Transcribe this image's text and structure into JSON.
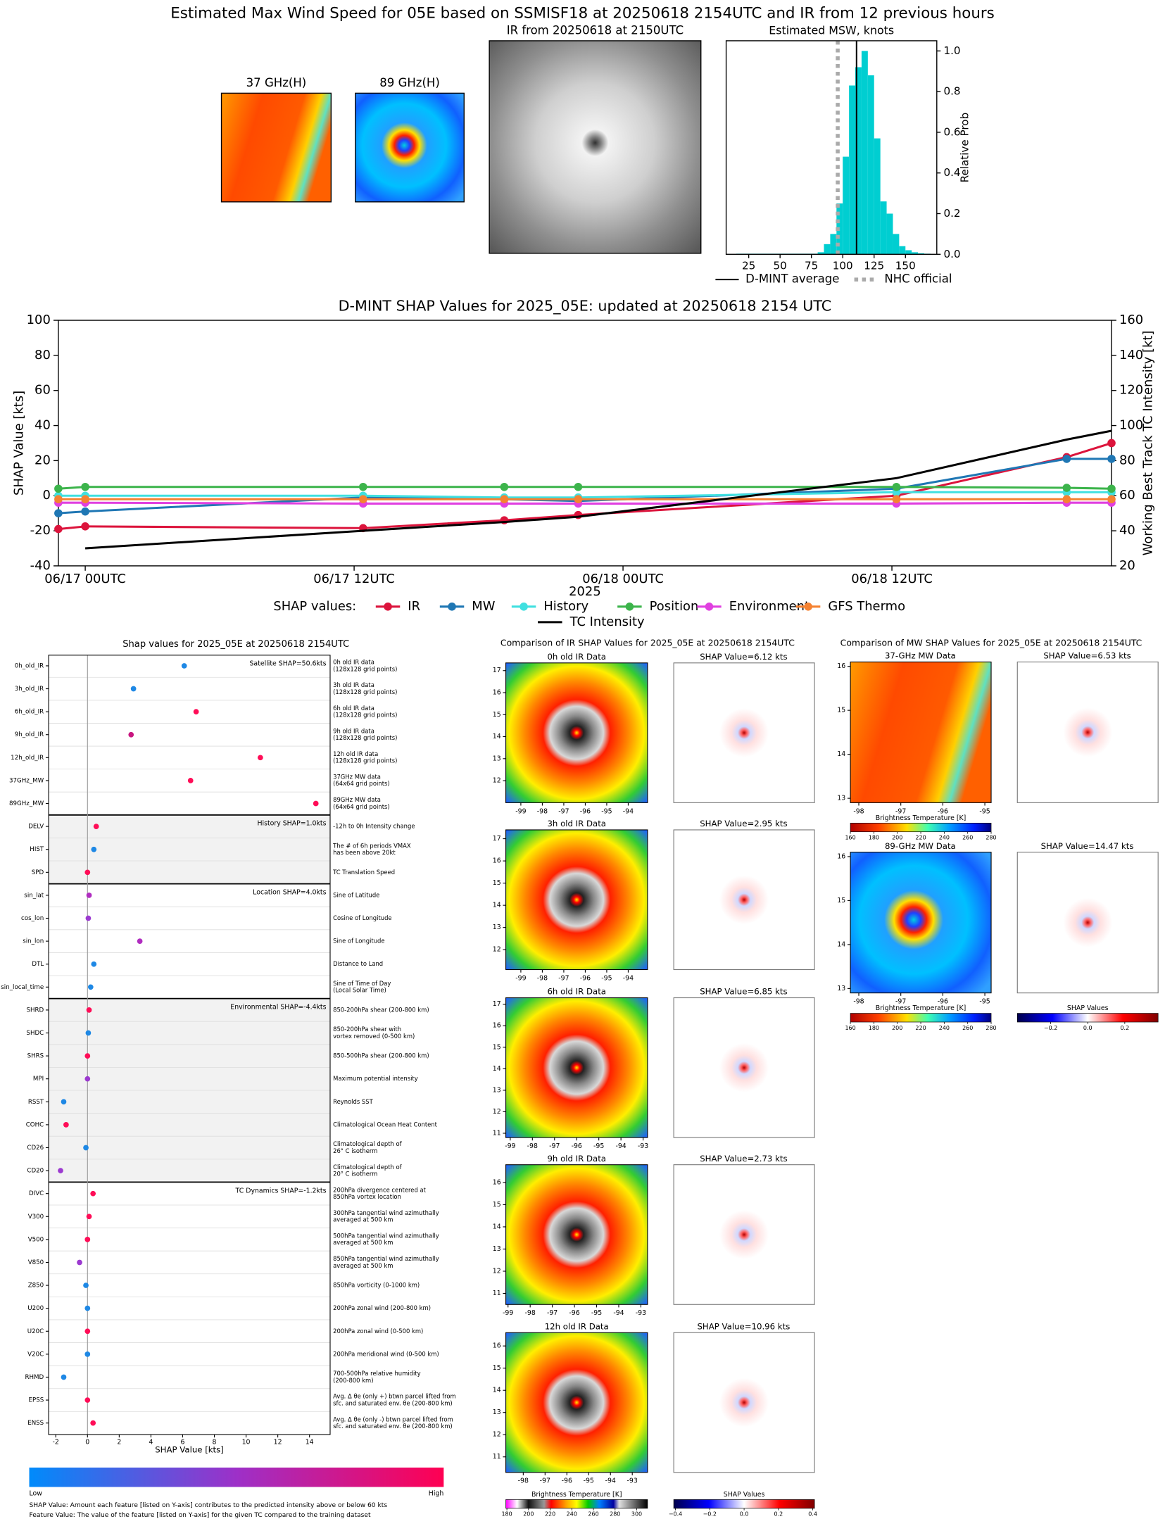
{
  "title": "Estimated Max Wind Speed for 05E based on SSMISF18 at 20250618 2154UTC and IR from 12 previous hours",
  "satellite": {
    "panels": [
      "37 GHz(H)",
      "89 GHz(H)",
      "IR from 20250618 at 2150UTC"
    ]
  },
  "chart_data": [
    {
      "type": "histogram",
      "title": "Estimated MSW, knots",
      "ylabel": "Relative Prob",
      "color": "#00ced1",
      "bins": [
        15,
        20,
        25,
        30,
        35,
        40,
        45,
        50,
        55,
        60,
        65,
        70,
        75,
        80,
        85,
        90,
        95,
        100,
        105,
        110,
        115,
        120,
        125,
        130,
        135,
        140,
        145,
        150,
        155,
        160,
        165,
        170
      ],
      "values": [
        0.003,
        0.003,
        0.003,
        0.003,
        0.003,
        0.003,
        0.003,
        0.003,
        0.003,
        0.003,
        0.003,
        0.003,
        0.003,
        0.01,
        0.05,
        0.1,
        0.25,
        0.48,
        0.83,
        0.92,
        1.0,
        0.88,
        0.57,
        0.26,
        0.2,
        0.1,
        0.04,
        0.02,
        0.01,
        0.005,
        0.003
      ],
      "xlim": [
        7,
        175
      ],
      "xticks": [
        25,
        50,
        75,
        100,
        125,
        150
      ],
      "ylim": [
        0,
        1.05
      ],
      "yticks": [
        {
          "value": 0,
          "label": "0.0"
        },
        0.2,
        0.4,
        0.6,
        0.8,
        {
          "value": 1,
          "label": "1.0"
        }
      ],
      "lines": [
        {
          "name": "D-MINT average",
          "value": 111,
          "color": "#000000",
          "style": "solid"
        },
        {
          "name": "NHC official",
          "value": 96,
          "color": "#aaaaaa",
          "style": "dotted"
        }
      ]
    },
    {
      "type": "line",
      "title": "D-MINT SHAP Values for 2025_05E: updated at 20250618 2154 UTC",
      "xlabel": "2025",
      "ylabel": "SHAP Value [kts]",
      "y2label": "Working Best Track TC Intensity [kt]",
      "legend_title": "SHAP values:",
      "x": [
        -1.2,
        0,
        12.4,
        18.7,
        22,
        36.2,
        43.8,
        45.8
      ],
      "xlim": [
        -1.2,
        45.8
      ],
      "xticks": [
        {
          "value": 0,
          "label": "06/17 00UTC"
        },
        {
          "value": 12,
          "label": "06/17 12UTC"
        },
        {
          "value": 24,
          "label": "06/18 00UTC"
        },
        {
          "value": 36,
          "label": "06/18 12UTC"
        }
      ],
      "ylim": [
        -40,
        100
      ],
      "yticks": [
        -40,
        -20,
        0,
        20,
        40,
        60,
        80,
        100
      ],
      "y2lim": [
        20,
        160
      ],
      "y2ticks": [
        20,
        40,
        60,
        80,
        100,
        120,
        140,
        160
      ],
      "series": [
        {
          "name": "IR",
          "color": "#dc143c",
          "marker": "o",
          "values": [
            -19,
            -17.5,
            -18.5,
            -14,
            -11,
            0,
            22,
            30
          ]
        },
        {
          "name": "MW",
          "color": "#1f77b4",
          "marker": "o",
          "values": [
            -10,
            -9,
            -1,
            -2,
            -3,
            4,
            21,
            21
          ]
        },
        {
          "name": "History",
          "color": "#40e0e0",
          "marker": "o",
          "values": [
            0,
            0,
            0,
            -1,
            -1,
            2,
            2,
            2
          ]
        },
        {
          "name": "Position",
          "color": "#3cb44b",
          "marker": "o",
          "values": [
            4,
            5,
            5,
            5,
            5,
            5,
            4.5,
            4
          ]
        },
        {
          "name": "Environment",
          "color": "#e040e0",
          "marker": "o",
          "values": [
            -4,
            -4,
            -4.5,
            -4.5,
            -4.5,
            -4.5,
            -4,
            -4
          ]
        },
        {
          "name": "GFS Thermo",
          "color": "#f58231",
          "marker": "o",
          "values": [
            -2,
            -2,
            -2,
            -2,
            -2,
            -2,
            -2,
            -2
          ]
        },
        {
          "name": "TC Intensity",
          "color": "#000000",
          "axis": "y2",
          "values": [
            null,
            30,
            40,
            45,
            48,
            70,
            92,
            97
          ]
        }
      ]
    },
    {
      "type": "dot",
      "title": "Shap values for 2025_05E at 20250618 2154UTC",
      "xlabel": "SHAP Value [kts]",
      "xlim": [
        -2.45,
        15.3
      ],
      "xticks": [
        -2,
        0,
        2,
        4,
        6,
        8,
        10,
        12,
        14
      ],
      "colorbar_low": "Low",
      "colorbar_high": "High",
      "notes": [
        "SHAP Value: Amount each feature [listed on Y-axis] contributes to the predicted intensity above or below 60 kts",
        "Feature Value: The value of the feature [listed on Y-axis] for the given TC compared to the training dataset"
      ],
      "groups": [
        {
          "label": "Satellite SHAP=50.6kts",
          "features": [
            {
              "name": "0h_old_IR",
              "value": 6.1,
              "color": "#1e88e5",
              "description": [
                "0h old IR data",
                "(128x128 grid points)"
              ]
            },
            {
              "name": "3h_old_IR",
              "value": 2.9,
              "color": "#1e88e5",
              "description": [
                "3h old IR data",
                "(128x128 grid points)"
              ]
            },
            {
              "name": "6h_old_IR",
              "value": 6.85,
              "color": "#ff0d57",
              "description": [
                "6h old IR data",
                "(128x128 grid points)"
              ]
            },
            {
              "name": "9h_old_IR",
              "value": 2.75,
              "color": "#c8167f",
              "description": [
                "9h old IR data",
                "(128x128 grid points)"
              ]
            },
            {
              "name": "12h_old_IR",
              "value": 10.9,
              "color": "#ff0d57",
              "description": [
                "12h old IR data",
                "(128x128 grid points)"
              ]
            },
            {
              "name": "37GHz_MW",
              "value": 6.5,
              "color": "#ff0d57",
              "description": [
                "37GHz MW data",
                "(64x64 grid points)"
              ]
            },
            {
              "name": "89GHz_MW",
              "value": 14.4,
              "color": "#ff0d57",
              "description": [
                "89GHz MW data",
                "(64x64 grid points)"
              ]
            }
          ]
        },
        {
          "label": "History SHAP=1.0kts",
          "shaded": true,
          "features": [
            {
              "name": "DELV",
              "value": 0.55,
              "color": "#ff0d57",
              "description": [
                "-12h to 0h Intensity change"
              ]
            },
            {
              "name": "HIST",
              "value": 0.4,
              "color": "#1e88e5",
              "description": [
                "The # of 6h periods VMAX",
                "has been above 20kt"
              ]
            },
            {
              "name": "SPD",
              "value": 0,
              "color": "#ff0d57",
              "description": [
                "TC Translation Speed"
              ]
            }
          ]
        },
        {
          "label": "Location SHAP=4.0kts",
          "features": [
            {
              "name": "sin_lat",
              "value": 0.1,
              "color": "#b02cc0",
              "description": [
                "Sine of Latitude"
              ]
            },
            {
              "name": "cos_lon",
              "value": 0.05,
              "color": "#9c3ad0",
              "description": [
                "Cosine of Longitude"
              ]
            },
            {
              "name": "sin_lon",
              "value": 3.3,
              "color": "#b02cc0",
              "description": [
                "Sine of Longitude"
              ]
            },
            {
              "name": "DTL",
              "value": 0.4,
              "color": "#1e88e5",
              "description": [
                "Distance to Land"
              ]
            },
            {
              "name": "sin_local_time",
              "value": 0.2,
              "color": "#1e88e5",
              "description": [
                "Sine of Time of Day",
                "(Local Solar Time)"
              ]
            }
          ]
        },
        {
          "label": "Environmental SHAP=-4.4kts",
          "shaded": true,
          "features": [
            {
              "name": "SHRD",
              "value": 0.1,
              "color": "#ff0d57",
              "description": [
                "850-200hPa shear (200-800 km)"
              ]
            },
            {
              "name": "SHDC",
              "value": 0.05,
              "color": "#1e88e5",
              "description": [
                "850-200hPa shear with",
                "vortex removed (0-500 km)"
              ]
            },
            {
              "name": "SHRS",
              "value": 0,
              "color": "#ff0d57",
              "description": [
                "850-500hPa shear (200-800 km)"
              ]
            },
            {
              "name": "MPI",
              "value": 0,
              "color": "#9c3ad0",
              "description": [
                "Maximum potential intensity"
              ]
            },
            {
              "name": "RSST",
              "value": -1.5,
              "color": "#1e88e5",
              "description": [
                "Reynolds SST"
              ]
            },
            {
              "name": "COHC",
              "value": -1.35,
              "color": "#ff0d57",
              "description": [
                "Climatological Ocean Heat Content"
              ]
            },
            {
              "name": "CD26",
              "value": -0.1,
              "color": "#1e88e5",
              "description": [
                "Climatological depth of",
                "26° C isotherm"
              ]
            },
            {
              "name": "CD20",
              "value": -1.7,
              "color": "#9c3ad0",
              "description": [
                "Climatological depth of",
                "20° C isotherm"
              ]
            }
          ]
        },
        {
          "label": "TC Dynamics SHAP=-1.2kts",
          "features": [
            {
              "name": "DIVC",
              "value": 0.35,
              "color": "#ff0d57",
              "description": [
                "200hPa divergence centered at",
                "850hPa vortex location"
              ]
            },
            {
              "name": "V300",
              "value": 0.1,
              "color": "#ff0d57",
              "description": [
                "300hPa tangential wind azimuthally",
                "averaged at 500 km"
              ]
            },
            {
              "name": "V500",
              "value": 0,
              "color": "#ff0d57",
              "description": [
                "500hPa tangential wind azimuthally",
                "averaged at 500 km"
              ]
            },
            {
              "name": "V850",
              "value": -0.5,
              "color": "#9c3ad0",
              "description": [
                "850hPa tangential wind azimuthally",
                "averaged at 500 km"
              ]
            },
            {
              "name": "Z850",
              "value": -0.1,
              "color": "#1e88e5",
              "description": [
                "850hPa vorticity (0-1000 km)"
              ]
            },
            {
              "name": "U200",
              "value": 0,
              "color": "#1e88e5",
              "description": [
                "200hPa zonal wind (200-800 km)"
              ]
            },
            {
              "name": "U20C",
              "value": 0,
              "color": "#ff0d57",
              "description": [
                "200hPa zonal wind (0-500 km)"
              ]
            },
            {
              "name": "V20C",
              "value": 0,
              "color": "#1e88e5",
              "description": [
                "200hPa meridional wind (0-500 km)"
              ]
            },
            {
              "name": "RHMD",
              "value": -1.5,
              "color": "#1e88e5",
              "description": [
                "700-500hPa relative humidity",
                "(200-800 km)"
              ]
            },
            {
              "name": "EPSS",
              "value": 0,
              "color": "#ff0d57",
              "description": [
                "Avg. Δ θe (only +) btwn parcel lifted from",
                "sfc. and saturated env. θe (200-800 km)"
              ]
            },
            {
              "name": "ENSS",
              "value": 0.35,
              "color": "#ff0d57",
              "description": [
                "Avg. Δ θe (only -) btwn parcel lifted from",
                "sfc. and saturated env. θe (200-800 km)"
              ]
            }
          ]
        }
      ]
    }
  ],
  "ir_comparison": {
    "title": "Comparison of IR SHAP Values for 2025_05E at 20250618 2154UTC",
    "rows": [
      {
        "data_title": "0h old IR Data",
        "shap_title": "SHAP Value=6.12 kts",
        "xlim": [
          -99.7,
          -93.1
        ],
        "ylim": [
          11.0,
          17.35
        ],
        "xticks": [
          -99,
          -98,
          -97,
          -96,
          -95,
          -94
        ],
        "yticks": [
          12,
          13,
          14,
          15,
          16,
          17
        ]
      },
      {
        "data_title": "3h old IR Data",
        "shap_title": "SHAP Value=2.95 kts",
        "xlim": [
          -99.7,
          -93.1
        ],
        "ylim": [
          11.1,
          17.4
        ],
        "xticks": [
          -99,
          -98,
          -97,
          -96,
          -95,
          -94
        ],
        "yticks": [
          12,
          13,
          14,
          15,
          16,
          17
        ]
      },
      {
        "data_title": "6h old IR Data",
        "shap_title": "SHAP Value=6.85 kts",
        "xlim": [
          -99.2,
          -92.8
        ],
        "ylim": [
          10.8,
          17.3
        ],
        "xticks": [
          -99,
          -98,
          -97,
          -96,
          -95,
          -94,
          -93
        ],
        "yticks": [
          11,
          12,
          13,
          14,
          15,
          16,
          17
        ]
      },
      {
        "data_title": "9h old IR Data",
        "shap_title": "SHAP Value=2.73 kts",
        "xlim": [
          -99.1,
          -92.7
        ],
        "ylim": [
          10.5,
          16.8
        ],
        "xticks": [
          -99,
          -98,
          -97,
          -96,
          -95,
          -94,
          -93
        ],
        "yticks": [
          11,
          12,
          13,
          14,
          15,
          16
        ]
      },
      {
        "data_title": "12h old IR Data",
        "shap_title": "SHAP Value=10.96 kts",
        "xlim": [
          -98.8,
          -92.3
        ],
        "ylim": [
          10.3,
          16.6
        ],
        "xticks": [
          -98,
          -97,
          -96,
          -95,
          -94,
          -93
        ],
        "yticks": [
          11,
          12,
          13,
          14,
          15,
          16
        ]
      }
    ],
    "colorbars": [
      {
        "label": "Brightness Temperature [K]",
        "clim": [
          179,
          310
        ],
        "ticks": [
          180,
          200,
          220,
          240,
          260,
          280,
          300
        ]
      },
      {
        "label": "SHAP Values",
        "clim": [
          -0.41,
          0.41
        ],
        "ticks": [
          {
            "value": -0.4,
            "label": "−0.4"
          },
          {
            "value": -0.2,
            "label": "−0.2"
          },
          {
            "value": 0,
            "label": "0.0"
          },
          0.2,
          0.4
        ]
      }
    ]
  },
  "mw_comparison": {
    "title": "Comparison of MW SHAP Values for 2025_05E at 20250618 2154UTC",
    "rows": [
      {
        "data_title": "37-GHz MW Data",
        "shap_title": "SHAP Value=6.53 kts",
        "xlim": [
          -98.2,
          -94.85
        ],
        "ylim": [
          12.9,
          16.1
        ],
        "xticks": [
          -98,
          -97,
          -96,
          -95
        ],
        "yticks": [
          13,
          14,
          15,
          16
        ]
      },
      {
        "data_title": "89-GHz MW Data",
        "shap_title": "SHAP Value=14.47 kts",
        "xlim": [
          -98.2,
          -94.85
        ],
        "ylim": [
          12.9,
          16.1
        ],
        "xticks": [
          -98,
          -97,
          -96,
          -95
        ],
        "yticks": [
          13,
          14,
          15,
          16
        ]
      }
    ],
    "colorbars": [
      {
        "label": "Brightness Temperature [K]",
        "clim": [
          160,
          280
        ],
        "ticks": [
          160,
          180,
          200,
          220,
          240,
          260,
          280
        ]
      },
      {
        "label": "Brightness Temperature [K]",
        "clim": [
          160,
          280
        ],
        "ticks": [
          160,
          180,
          200,
          220,
          240,
          260,
          280
        ]
      },
      {
        "label": "SHAP Values",
        "clim": [
          -0.38,
          0.38
        ],
        "ticks": [
          {
            "value": -0.2,
            "label": "−0.2"
          },
          {
            "value": 0,
            "label": "0.0"
          },
          0.2
        ]
      }
    ]
  }
}
